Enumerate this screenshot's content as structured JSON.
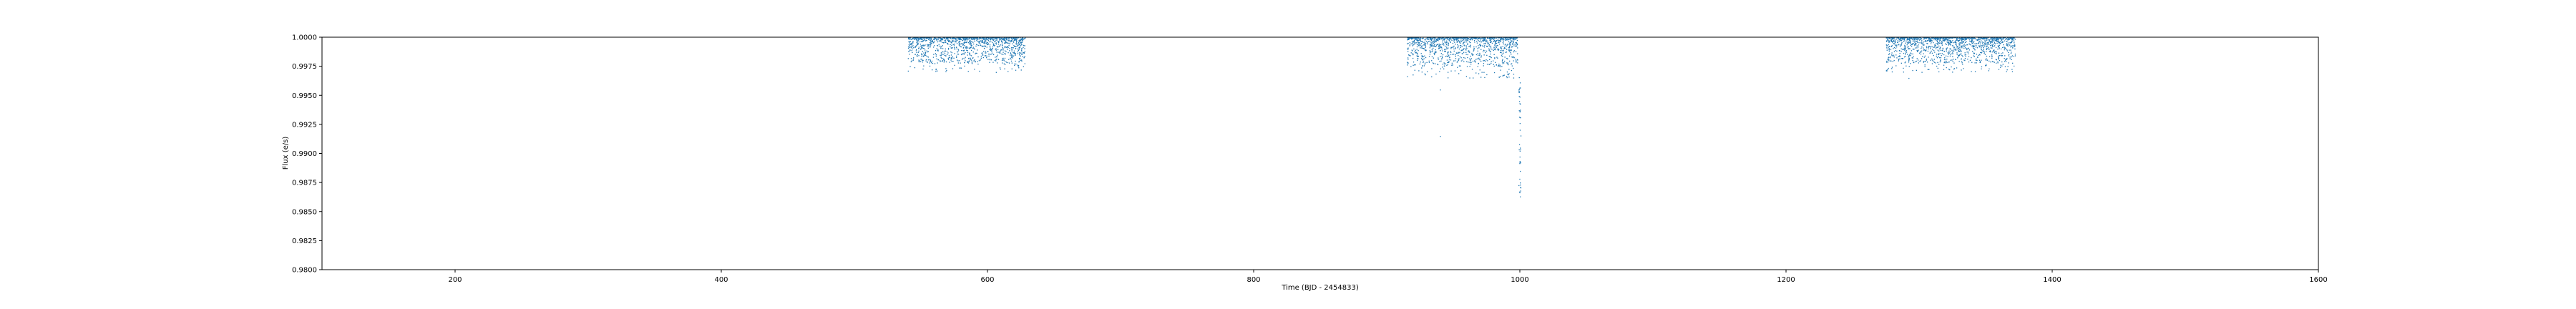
{
  "chart_data": {
    "type": "scatter",
    "title": "",
    "xlabel": "Time (BJD - 2454833)",
    "ylabel": "Flux (e/s)",
    "xlim": [
      100,
      1600
    ],
    "ylim": [
      0.98,
      1.0
    ],
    "x_ticks": [
      200,
      400,
      600,
      800,
      1000,
      1200,
      1400,
      1600
    ],
    "x_tick_labels": [
      "200",
      "400",
      "600",
      "800",
      "1000",
      "1200",
      "1400",
      "1600"
    ],
    "y_ticks": [
      0.98,
      0.9825,
      0.985,
      0.9875,
      0.99,
      0.9925,
      0.995,
      0.9975,
      1.0
    ],
    "y_tick_labels": [
      "0.9800",
      "0.9825",
      "0.9850",
      "0.9875",
      "0.9900",
      "0.9925",
      "0.9950",
      "0.9975",
      "1.0000"
    ],
    "grid": false,
    "marker_color": "#1f77b4",
    "segments": [
      {
        "x_start": 540,
        "x_end": 628,
        "typical_low": 0.9978,
        "scatter_low": 0.997
      },
      {
        "x_start": 915,
        "x_end": 998,
        "typical_low": 0.9975,
        "scatter_low": 0.9965
      },
      {
        "x_start": 1275,
        "x_end": 1372,
        "typical_low": 0.9978,
        "scatter_low": 0.997
      }
    ],
    "notable_points": [
      {
        "x": 1000,
        "y": 0.9863
      },
      {
        "x": 1000,
        "y": 0.9875
      },
      {
        "x": 1000,
        "y": 0.9885
      },
      {
        "x": 1000,
        "y": 0.9905
      },
      {
        "x": 999,
        "y": 0.9955
      },
      {
        "x": 940,
        "y": 0.9955
      },
      {
        "x": 940,
        "y": 0.9915
      },
      {
        "x": 1292,
        "y": 0.9965
      }
    ]
  }
}
